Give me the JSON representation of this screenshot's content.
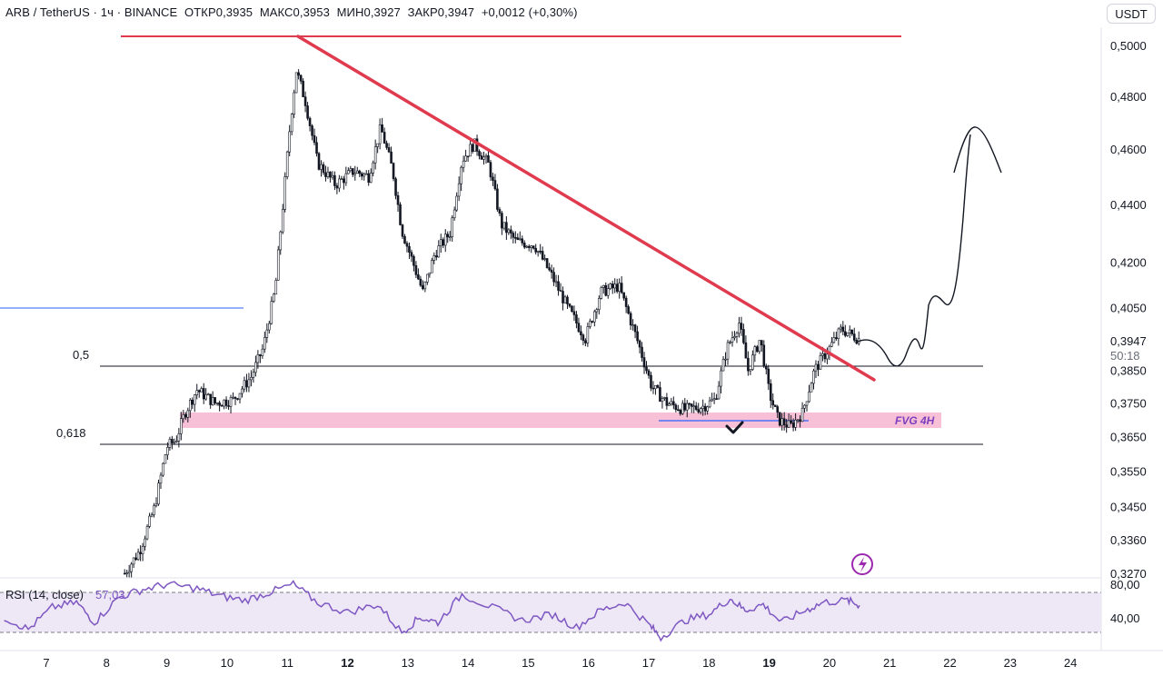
{
  "header": {
    "symbol": "ARB / TetherUS · 1ч · BINANCE",
    "open": "ОТКР0,3935",
    "high": "МАКС0,3953",
    "low": "МИН0,3927",
    "close": "ЗАКР0,3947",
    "change": "+0,0012 (+0,30%)"
  },
  "currency_button": "USDT",
  "colors": {
    "bull": "#26a69a",
    "bear": "#131722",
    "candle": "#131722",
    "trendline": "#e03a4e",
    "fvg": "#f7b5cf",
    "rsi_line": "#7e57c2",
    "rsi_band": "#ede7f6",
    "fib_line": "#131722",
    "blue_line": "#2962ff"
  },
  "chart_data": {
    "type": "candlestick",
    "y_scale": "log",
    "y_axis_ticks": [
      "0,5000",
      "0,4800",
      "0,4600",
      "0,4400",
      "0,4200",
      "0,4050",
      "0,3850",
      "0,3750",
      "0,3650",
      "0,3550",
      "0,3450",
      "0,3360",
      "0,3270"
    ],
    "y_tick_values": [
      0.5,
      0.48,
      0.46,
      0.44,
      0.42,
      0.405,
      0.385,
      0.375,
      0.365,
      0.355,
      0.345,
      0.336,
      0.327
    ],
    "x_axis_ticks": [
      {
        "label": "7",
        "bold": false
      },
      {
        "label": "8",
        "bold": false
      },
      {
        "label": "9",
        "bold": false
      },
      {
        "label": "10",
        "bold": false
      },
      {
        "label": "11",
        "bold": false
      },
      {
        "label": "12",
        "bold": true
      },
      {
        "label": "13",
        "bold": false
      },
      {
        "label": "14",
        "bold": false
      },
      {
        "label": "15",
        "bold": false
      },
      {
        "label": "16",
        "bold": false
      },
      {
        "label": "17",
        "bold": false
      },
      {
        "label": "18",
        "bold": false
      },
      {
        "label": "19",
        "bold": true
      },
      {
        "label": "20",
        "bold": false
      },
      {
        "label": "21",
        "bold": false
      },
      {
        "label": "22",
        "bold": false
      },
      {
        "label": "23",
        "bold": false
      },
      {
        "label": "24",
        "bold": false
      }
    ],
    "last_price": "0,3947",
    "countdown": "50:18",
    "levels": [
      {
        "label": "0,5",
        "value": 0.3855
      },
      {
        "label": "0,618",
        "value": 0.3632
      }
    ],
    "fvg_zone": {
      "label": "FVG 4H",
      "top": 0.3727,
      "bottom": 0.368
    },
    "resistance_high": 0.5035,
    "price_path": [
      {
        "day": 8.3,
        "close": 0.327
      },
      {
        "day": 8.55,
        "close": 0.333
      },
      {
        "day": 8.8,
        "close": 0.345
      },
      {
        "day": 9.0,
        "close": 0.362
      },
      {
        "day": 9.15,
        "close": 0.364
      },
      {
        "day": 9.3,
        "close": 0.372
      },
      {
        "day": 9.5,
        "close": 0.379
      },
      {
        "day": 9.8,
        "close": 0.375
      },
      {
        "day": 10.1,
        "close": 0.376
      },
      {
        "day": 10.4,
        "close": 0.383
      },
      {
        "day": 10.6,
        "close": 0.392
      },
      {
        "day": 10.8,
        "close": 0.411
      },
      {
        "day": 10.95,
        "close": 0.445
      },
      {
        "day": 11.05,
        "close": 0.47
      },
      {
        "day": 11.15,
        "close": 0.49
      },
      {
        "day": 11.3,
        "close": 0.478
      },
      {
        "day": 11.5,
        "close": 0.455
      },
      {
        "day": 11.8,
        "close": 0.447
      },
      {
        "day": 12.1,
        "close": 0.452
      },
      {
        "day": 12.35,
        "close": 0.45
      },
      {
        "day": 12.55,
        "close": 0.468
      },
      {
        "day": 12.75,
        "close": 0.452
      },
      {
        "day": 12.9,
        "close": 0.431
      },
      {
        "day": 13.05,
        "close": 0.422
      },
      {
        "day": 13.25,
        "close": 0.41
      },
      {
        "day": 13.45,
        "close": 0.423
      },
      {
        "day": 13.7,
        "close": 0.43
      },
      {
        "day": 13.9,
        "close": 0.456
      },
      {
        "day": 14.1,
        "close": 0.462
      },
      {
        "day": 14.35,
        "close": 0.454
      },
      {
        "day": 14.55,
        "close": 0.433
      },
      {
        "day": 14.8,
        "close": 0.427
      },
      {
        "day": 15.1,
        "close": 0.426
      },
      {
        "day": 15.4,
        "close": 0.415
      },
      {
        "day": 15.65,
        "close": 0.405
      },
      {
        "day": 15.95,
        "close": 0.395
      },
      {
        "day": 16.2,
        "close": 0.41
      },
      {
        "day": 16.5,
        "close": 0.412
      },
      {
        "day": 16.8,
        "close": 0.395
      },
      {
        "day": 17.05,
        "close": 0.38
      },
      {
        "day": 17.3,
        "close": 0.375
      },
      {
        "day": 17.6,
        "close": 0.373
      },
      {
        "day": 17.9,
        "close": 0.374
      },
      {
        "day": 18.1,
        "close": 0.376
      },
      {
        "day": 18.3,
        "close": 0.392
      },
      {
        "day": 18.5,
        "close": 0.4
      },
      {
        "day": 18.65,
        "close": 0.385
      },
      {
        "day": 18.85,
        "close": 0.395
      },
      {
        "day": 19.0,
        "close": 0.378
      },
      {
        "day": 19.15,
        "close": 0.37
      },
      {
        "day": 19.35,
        "close": 0.368
      },
      {
        "day": 19.55,
        "close": 0.372
      },
      {
        "day": 19.75,
        "close": 0.385
      },
      {
        "day": 20.0,
        "close": 0.392
      },
      {
        "day": 20.2,
        "close": 0.398
      },
      {
        "day": 20.5,
        "close": 0.3947
      }
    ],
    "rsi": {
      "label": "RSI (14, close)",
      "value": "57,03",
      "axis_ticks": [
        "80,00",
        "40,00"
      ],
      "band": [
        70,
        30
      ],
      "path": [
        {
          "day": 6.3,
          "v": 45
        },
        {
          "day": 6.7,
          "v": 33
        },
        {
          "day": 7.1,
          "v": 55
        },
        {
          "day": 7.5,
          "v": 60
        },
        {
          "day": 7.8,
          "v": 40
        },
        {
          "day": 8.2,
          "v": 65
        },
        {
          "day": 8.6,
          "v": 73
        },
        {
          "day": 9.0,
          "v": 78
        },
        {
          "day": 9.5,
          "v": 74
        },
        {
          "day": 9.9,
          "v": 66
        },
        {
          "day": 10.3,
          "v": 62
        },
        {
          "day": 10.7,
          "v": 70
        },
        {
          "day": 11.1,
          "v": 78
        },
        {
          "day": 11.5,
          "v": 60
        },
        {
          "day": 12.0,
          "v": 50
        },
        {
          "day": 12.5,
          "v": 58
        },
        {
          "day": 12.9,
          "v": 30
        },
        {
          "day": 13.2,
          "v": 45
        },
        {
          "day": 13.5,
          "v": 40
        },
        {
          "day": 13.9,
          "v": 68
        },
        {
          "day": 14.4,
          "v": 55
        },
        {
          "day": 14.9,
          "v": 42
        },
        {
          "day": 15.4,
          "v": 48
        },
        {
          "day": 15.8,
          "v": 35
        },
        {
          "day": 16.2,
          "v": 52
        },
        {
          "day": 16.6,
          "v": 60
        },
        {
          "day": 17.0,
          "v": 38
        },
        {
          "day": 17.2,
          "v": 25
        },
        {
          "day": 17.6,
          "v": 42
        },
        {
          "day": 18.0,
          "v": 48
        },
        {
          "day": 18.35,
          "v": 64
        },
        {
          "day": 18.6,
          "v": 52
        },
        {
          "day": 18.9,
          "v": 58
        },
        {
          "day": 19.2,
          "v": 40
        },
        {
          "day": 19.6,
          "v": 52
        },
        {
          "day": 19.9,
          "v": 60
        },
        {
          "day": 20.3,
          "v": 62
        },
        {
          "day": 20.5,
          "v": 57
        }
      ]
    }
  }
}
